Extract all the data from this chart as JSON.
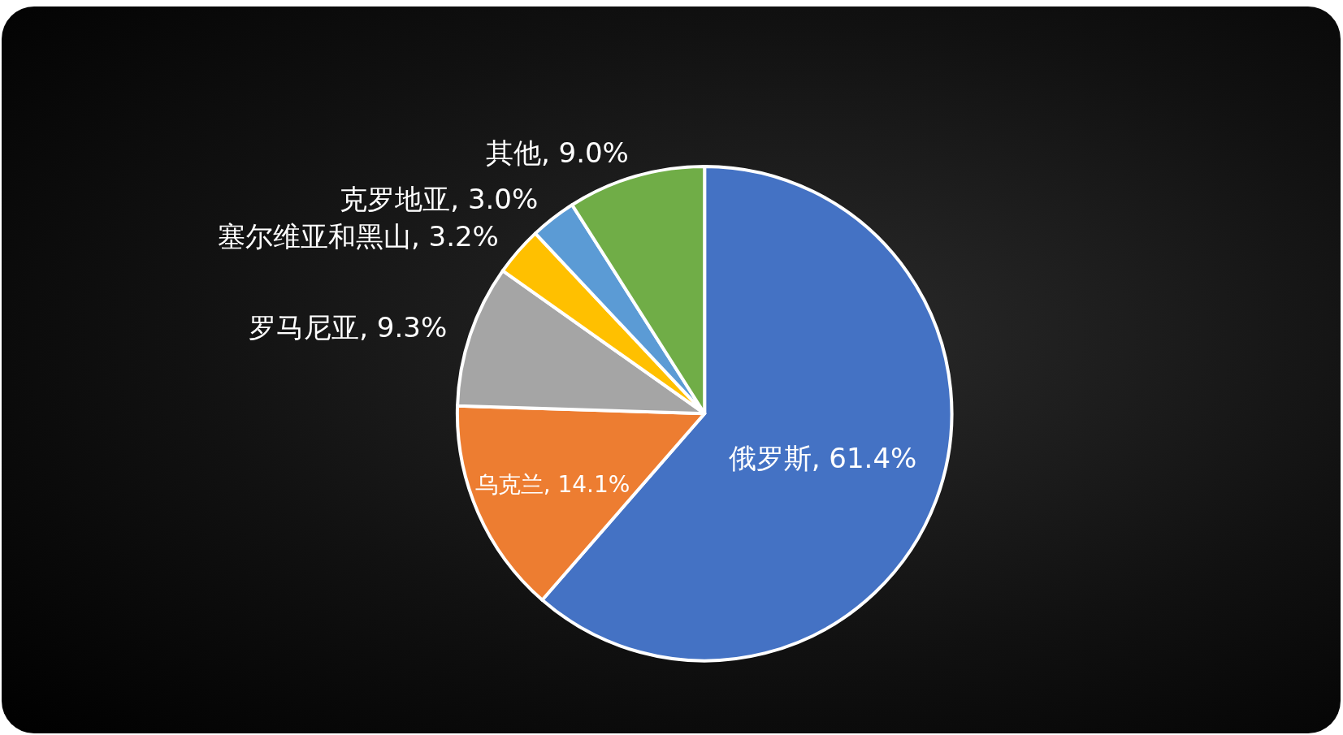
{
  "chart_data": {
    "type": "pie",
    "categories": [
      "俄罗斯",
      "乌克兰",
      "罗马尼亚",
      "塞尔维亚和黑山",
      "克罗地亚",
      "其他"
    ],
    "values": [
      61.4,
      14.1,
      9.3,
      3.2,
      3.0,
      9.0
    ],
    "value_labels": [
      "61.4%",
      "14.1%",
      "9.3%",
      "3.2%",
      "3.0%",
      "9.0%"
    ],
    "colors": [
      "#4472c4",
      "#ed7d31",
      "#a5a5a5",
      "#ffc000",
      "#5b9bd5",
      "#70ad47"
    ],
    "legend": false
  }
}
